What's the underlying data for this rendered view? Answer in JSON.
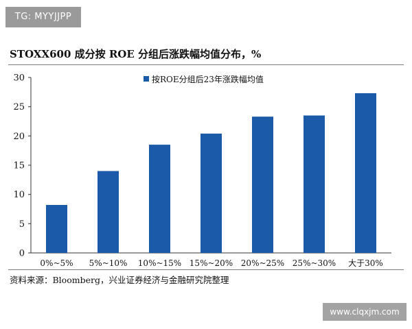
{
  "tag_text": "TG: MYYJJPP",
  "title": "STOXX600 成分按 ROE 分组后涨跌幅均值分布，%",
  "source": "资料来源：Bloomberg，兴业证券经济与金融研究院整理",
  "watermark": "www.clqxjm.com",
  "chart_data": {
    "type": "bar",
    "categories": [
      "0%~5%",
      "5%~10%",
      "10%~15%",
      "15%~20%",
      "20%~25%",
      "25%~30%",
      "大于30%"
    ],
    "series": [
      {
        "name": "按ROE分组后23年涨跌幅均值",
        "values": [
          8.2,
          14.0,
          18.5,
          20.4,
          23.3,
          23.5,
          27.3
        ]
      }
    ],
    "yticks": [
      0,
      5,
      10,
      15,
      20,
      25,
      30
    ],
    "ylim": [
      0,
      30
    ],
    "bar_color": "#1a5aa8",
    "grid": false,
    "legend_position": "top-center"
  }
}
